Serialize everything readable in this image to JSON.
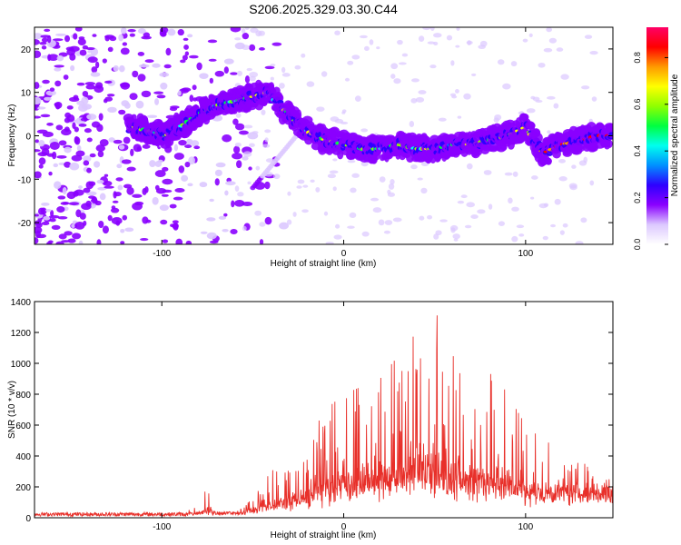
{
  "title": "S206.2025.329.03.30.C44",
  "chart_data": [
    {
      "type": "heatmap",
      "name": "spectrogram",
      "xlabel": "Height of straight line (km)",
      "ylabel": "Frequency (Hz)",
      "xlim": [
        -170,
        148
      ],
      "ylim": [
        -25,
        25
      ],
      "xticks": [
        -100,
        0,
        100
      ],
      "xtick_labels": [
        "-100",
        "0",
        "100"
      ],
      "yticks": [
        -20,
        -10,
        0,
        10,
        20
      ],
      "ytick_labels": [
        "-20",
        "-10",
        "0",
        "10",
        "20"
      ],
      "ridge": {
        "x": [
          -118,
          -105,
          -98,
          -90,
          -80,
          -70,
          -60,
          -50,
          -42,
          -35,
          -28,
          -20,
          -10,
          0,
          10,
          20,
          30,
          40,
          50,
          60,
          70,
          80,
          90,
          100,
          110,
          120,
          130,
          140,
          148
        ],
        "y": [
          2,
          1,
          0,
          2,
          5,
          7,
          8,
          9,
          10,
          7,
          4,
          1,
          -1,
          -2,
          -3,
          -3,
          -2,
          -3,
          -3,
          -2,
          -2,
          -1,
          0,
          2,
          -4,
          -2,
          -1,
          0,
          0
        ]
      },
      "colorbar": {
        "label": "Normalized spectral amplitude",
        "ticks": [
          0.0,
          0.2,
          0.4,
          0.6,
          0.8
        ],
        "tick_labels": [
          "0.0",
          "0.2",
          "0.4",
          "0.6",
          "0.8"
        ],
        "range": [
          0,
          0.93
        ],
        "colors": [
          "#ffffff",
          "#dcc8ff",
          "#8a00ff",
          "#2e00ff",
          "#0090ff",
          "#00ffee",
          "#00ff40",
          "#90ff00",
          "#ffff00",
          "#ff9900",
          "#ff0000",
          "#ff0066"
        ]
      }
    },
    {
      "type": "line",
      "name": "snr",
      "xlabel": "Height of straight line (km)",
      "ylabel": "SNR (10 * v/v)",
      "xlim": [
        -170,
        148
      ],
      "ylim": [
        0,
        1400
      ],
      "xticks": [
        -100,
        0,
        100
      ],
      "xtick_labels": [
        "-100",
        "0",
        "100"
      ],
      "yticks": [
        0,
        200,
        400,
        600,
        800,
        1000,
        1200,
        1400
      ],
      "ytick_labels": [
        "0",
        "200",
        "400",
        "600",
        "800",
        "1000",
        "1200",
        "1400"
      ],
      "color": "#e8302a",
      "envelope": {
        "x": [
          -170,
          -90,
          -80,
          -75,
          -70,
          -60,
          -50,
          -40,
          -30,
          -20,
          -10,
          0,
          10,
          20,
          30,
          40,
          50,
          60,
          70,
          80,
          90,
          100,
          110,
          120,
          130,
          140,
          148
        ],
        "y": [
          35,
          40,
          80,
          200,
          60,
          40,
          120,
          300,
          380,
          500,
          700,
          800,
          850,
          900,
          1050,
          1200,
          1350,
          1050,
          900,
          1000,
          800,
          600,
          500,
          450,
          400,
          350,
          300
        ]
      },
      "base": {
        "x": [
          -170,
          -80,
          -60,
          -40,
          -20,
          0,
          20,
          40,
          60,
          80,
          100,
          120,
          148
        ],
        "y": [
          25,
          30,
          40,
          70,
          120,
          180,
          220,
          230,
          220,
          190,
          160,
          180,
          200
        ]
      }
    }
  ]
}
